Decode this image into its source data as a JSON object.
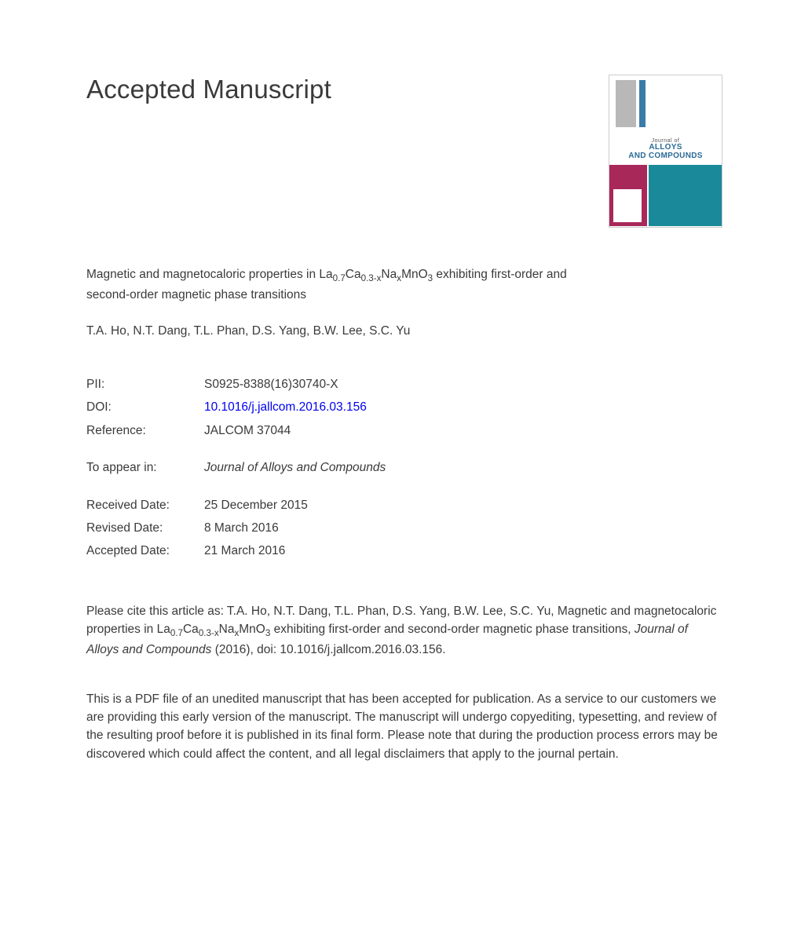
{
  "header": {
    "title": "Accepted Manuscript"
  },
  "journal_cover": {
    "journal_of": "Journal of",
    "name_line1": "ALLOYS",
    "name_line2": "AND COMPOUNDS",
    "colors": {
      "grey": "#b8b8b8",
      "blue_strip": "#3a7ba8",
      "title_blue": "#2a6a95",
      "maroon": "#a8285a",
      "teal": "#1a8a9a"
    }
  },
  "article": {
    "title_prefix": "Magnetic and magnetocaloric properties in La",
    "sub1": "0.7",
    "mid1": "Ca",
    "sub2": "0.3-x",
    "mid2": "Na",
    "sub3": "x",
    "mid3": "MnO",
    "sub4": "3",
    "title_suffix": " exhibiting first-order and second-order magnetic phase transitions",
    "authors": "T.A. Ho, N.T. Dang, T.L. Phan, D.S. Yang, B.W. Lee, S.C. Yu"
  },
  "meta": {
    "pii_label": "PII:",
    "pii_value": "S0925-8388(16)30740-X",
    "doi_label": "DOI:",
    "doi_value": "10.1016/j.jallcom.2016.03.156",
    "ref_label": "Reference:",
    "ref_value": "JALCOM 37044",
    "appear_label": "To appear in:",
    "appear_value": "Journal of Alloys and Compounds",
    "received_label": "Received Date:",
    "received_value": "25 December 2015",
    "revised_label": "Revised Date:",
    "revised_value": "8 March 2016",
    "accepted_label": "Accepted Date:",
    "accepted_value": "21 March 2016"
  },
  "citation": {
    "prefix": "Please cite this article as: T.A. Ho, N.T. Dang, T.L. Phan, D.S. Yang, B.W. Lee, S.C. Yu, Magnetic and magnetocaloric properties in La",
    "sub1": "0.7",
    "mid1": "Ca",
    "sub2": "0.3-x",
    "mid2": "Na",
    "sub3": "x",
    "mid3": "MnO",
    "sub4": "3",
    "mid4": " exhibiting first-order and second-order magnetic phase transitions, ",
    "journal": "Journal of Alloys and Compounds",
    "suffix": " (2016), doi: 10.1016/j.jallcom.2016.03.156."
  },
  "disclaimer": {
    "text": "This is a PDF file of an unedited manuscript that has been accepted for publication. As a service to our customers we are providing this early version of the manuscript. The manuscript will undergo copyediting, typesetting, and review of the resulting proof before it is published in its final form. Please note that during the production process errors may be discovered which could affect the content, and all legal disclaimers that apply to the journal pertain."
  }
}
